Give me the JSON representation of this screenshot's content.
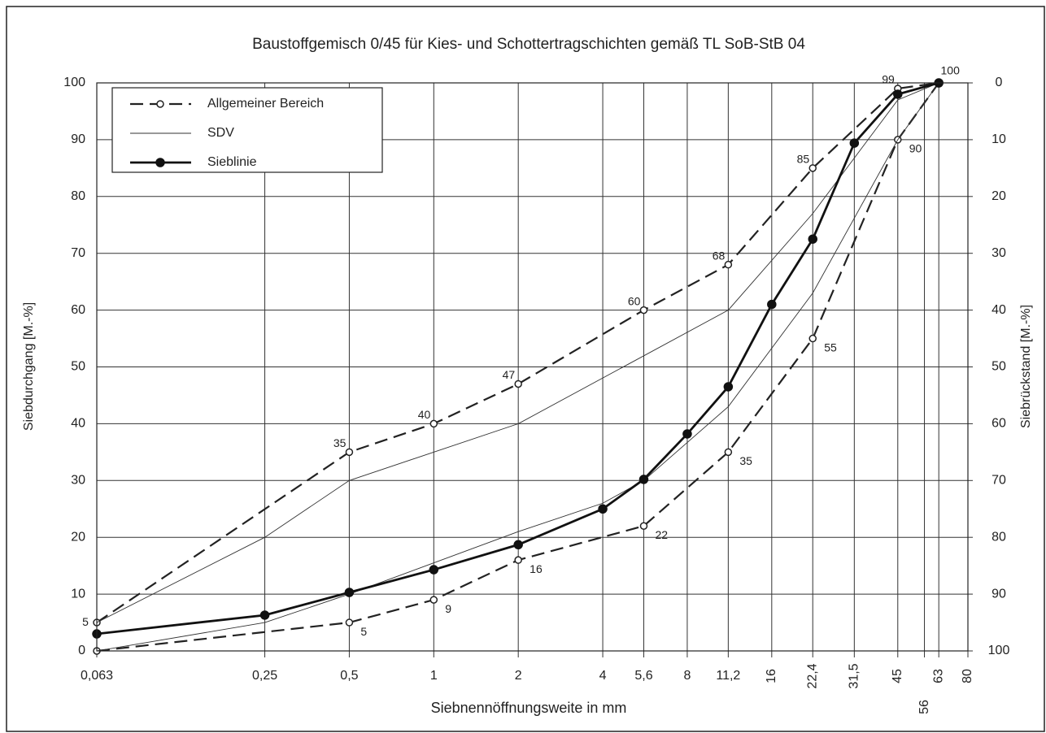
{
  "chart_data": {
    "type": "line",
    "title": "Baustoffgemisch 0/45 für Kies- und Schottertragschichten gemäß TL SoB-StB 04",
    "x_label": "Siebnennöffnungsweite in mm",
    "y_label": "Siebdurchgang  [M.-%]",
    "y2_label": "Siebrückstand  [M.-%]",
    "log_x": true,
    "grid": true,
    "legend": "top-left",
    "xlim": [
      0.063,
      80
    ],
    "xticks": [
      {
        "value": 0.063,
        "label": "0,063"
      },
      {
        "value": 0.25,
        "label": "0,25"
      },
      {
        "value": 0.5,
        "label": "0,5"
      },
      1,
      2,
      4,
      {
        "value": 5.6,
        "label": "5,6"
      },
      8,
      {
        "value": 11.2,
        "label": "11,2"
      },
      16,
      {
        "value": 22.4,
        "label": "22,4"
      },
      {
        "value": 31.5,
        "label": "31,5"
      },
      45,
      56,
      63,
      80
    ],
    "ylim": [
      0,
      100
    ],
    "yticks": [
      0,
      10,
      20,
      30,
      40,
      50,
      60,
      70,
      80,
      90,
      100
    ],
    "y2lim": [
      100,
      0
    ],
    "y2ticks": [
      0,
      10,
      20,
      30,
      40,
      50,
      60,
      70,
      80,
      90,
      100
    ],
    "series": [
      {
        "name": "Allgemeiner Bereich",
        "color": "#222222",
        "line": "dashed",
        "marker": "open",
        "lines": [
          {
            "x": [
              0.063,
              0.5,
              1,
              2,
              5.6,
              11.2,
              22.4,
              45,
              63
            ],
            "values": [
              5,
              35,
              40,
              47,
              60,
              68,
              85,
              99,
              100
            ]
          },
          {
            "x": [
              0.063,
              0.5,
              1,
              2,
              5.6,
              11.2,
              22.4,
              45,
              63
            ],
            "values": [
              0,
              5,
              9,
              16,
              22,
              35,
              55,
              90,
              100
            ]
          }
        ]
      },
      {
        "name": "SDV",
        "color": "#333333",
        "line": "thin",
        "marker": "none",
        "lines": [
          {
            "x": [
              0.063,
              0.25,
              0.5,
              2,
              11.2,
              22.4,
              45,
              63
            ],
            "values": [
              5,
              20,
              30,
              40,
              60,
              77,
              97,
              100
            ]
          },
          {
            "x": [
              0.063,
              0.25,
              0.5,
              2,
              4,
              5.6,
              11.2,
              22.4,
              45,
              63
            ],
            "values": [
              0,
              5,
              10,
              21,
              26,
              30,
              43,
              63,
              90,
              100
            ]
          }
        ]
      },
      {
        "name": "Sieblinie",
        "color": "#111111",
        "line": "thick",
        "marker": "filled",
        "lines": [
          {
            "x": [
              0.063,
              0.25,
              0.5,
              1,
              2,
              4,
              5.6,
              8,
              11.2,
              16,
              22.4,
              31.5,
              45,
              63
            ],
            "values": [
              3,
              6.3,
              10.3,
              14.3,
              18.7,
              25,
              30.2,
              38.2,
              46.5,
              61,
              72.5,
              89.4,
              98,
              100
            ]
          }
        ]
      }
    ]
  }
}
